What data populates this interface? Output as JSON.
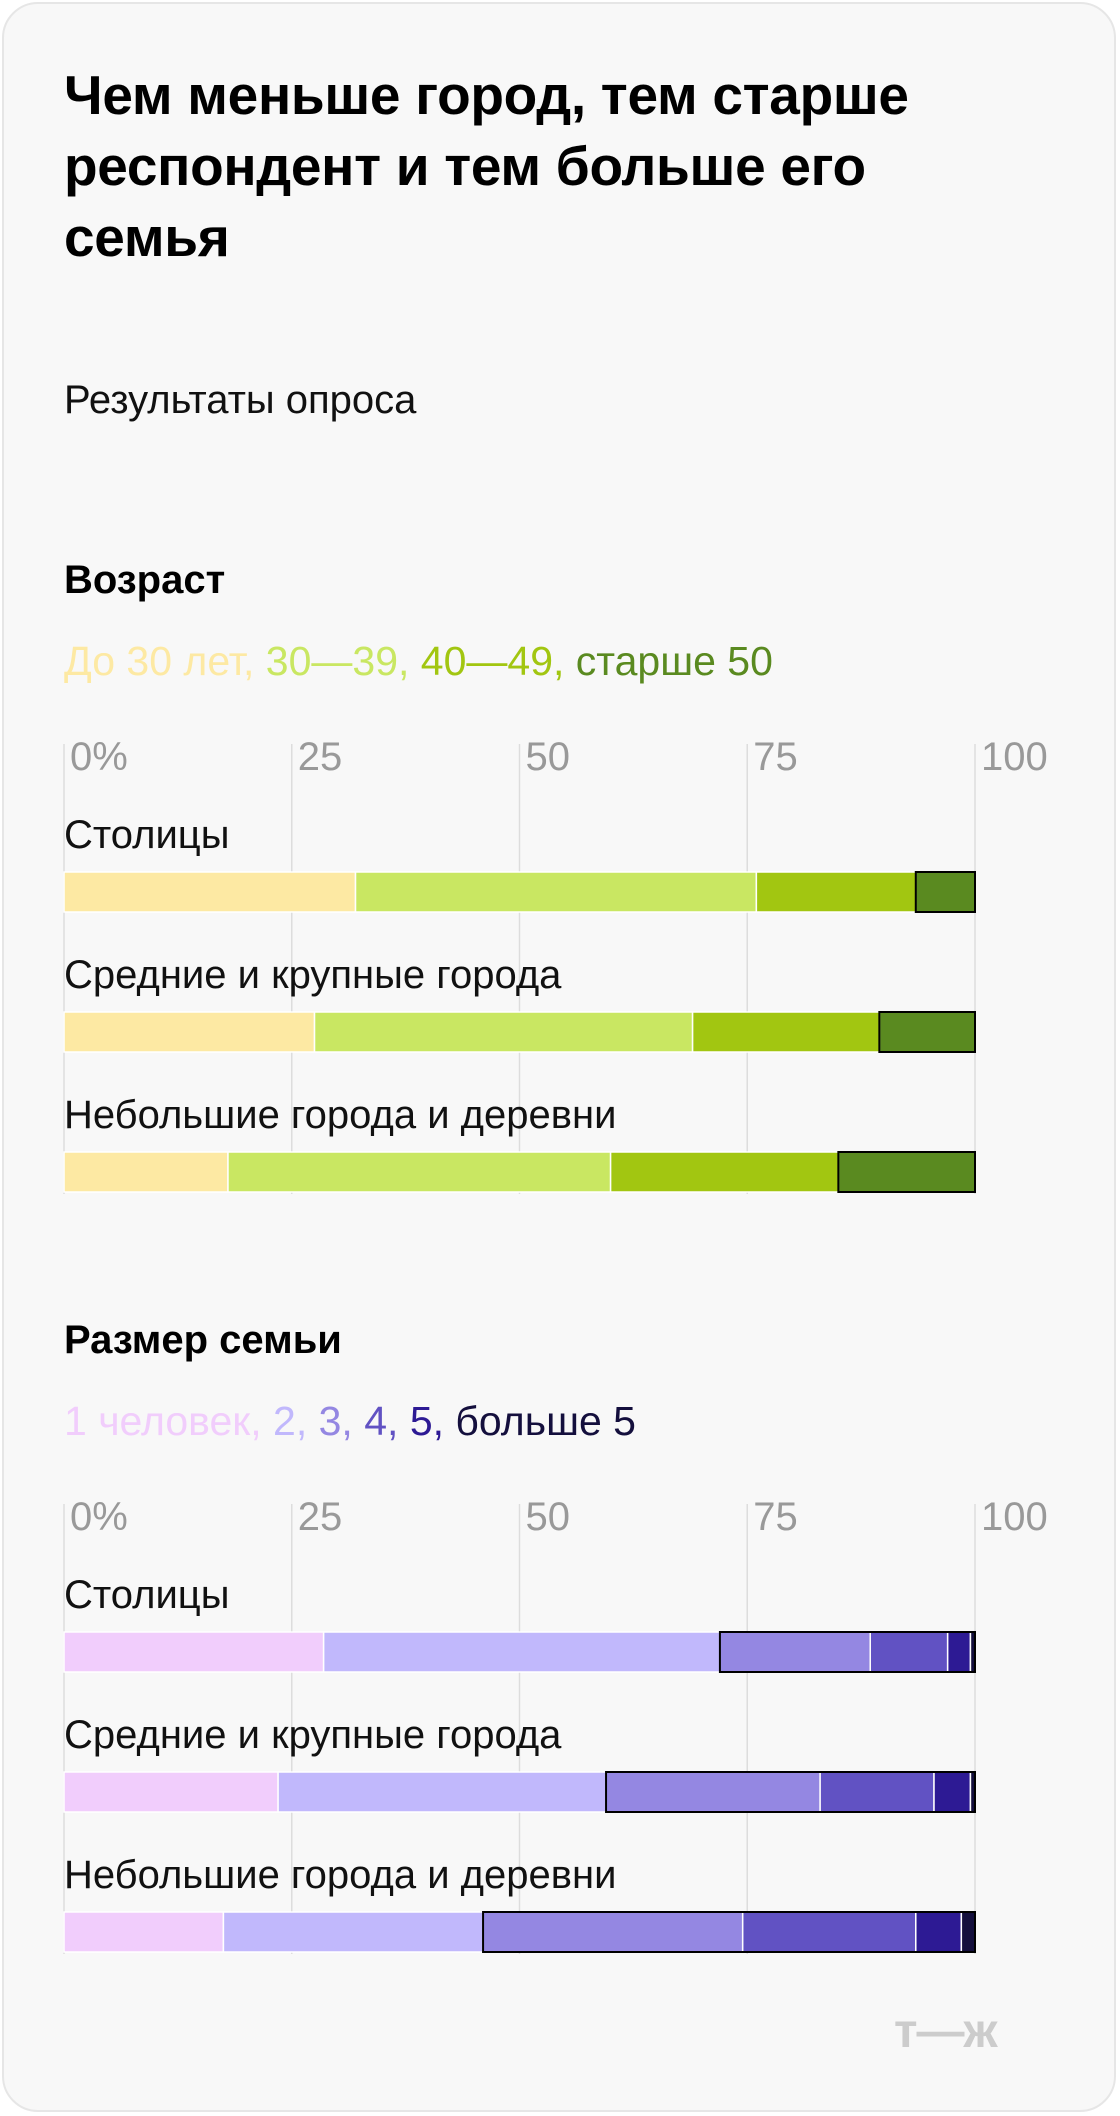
{
  "title": "Чем меньше город, тем старше респондент и тем больше его семья",
  "subtitle": "Результаты опроса",
  "logo": "т—ж",
  "chart_data": [
    {
      "type": "bar",
      "stacked": true,
      "orientation": "horizontal",
      "title": "Возраст",
      "xlim": [
        0,
        100
      ],
      "x_ticks": [
        "0%",
        "25",
        "50",
        "75",
        "100"
      ],
      "categories": [
        "Столицы",
        "Средние и крупные города",
        "Небольшие города и деревни"
      ],
      "series": [
        {
          "name": "До 30 лет",
          "color": "#fde9a3",
          "values": [
            32,
            27.5,
            18
          ]
        },
        {
          "name": "30—39",
          "color": "#c9e762",
          "values": [
            44,
            41.5,
            42
          ]
        },
        {
          "name": "40—49",
          "color": "#a2c611",
          "values": [
            17.5,
            20.5,
            25
          ]
        },
        {
          "name": "старше 50",
          "color": "#5a8a20",
          "values": [
            6.5,
            10.5,
            15
          ]
        }
      ],
      "legend_separator": ", ",
      "grid": true
    },
    {
      "type": "bar",
      "stacked": true,
      "orientation": "horizontal",
      "title": "Размер семьи",
      "xlim": [
        0,
        100
      ],
      "x_ticks": [
        "0%",
        "25",
        "50",
        "75",
        "100"
      ],
      "categories": [
        "Столицы",
        "Средние и крупные города",
        "Небольшие города и деревни"
      ],
      "series": [
        {
          "name": "1 человек",
          "color": "#f1cdfc",
          "values": [
            28.5,
            23.5,
            17.5
          ]
        },
        {
          "name": "2",
          "color": "#c1b8fc",
          "values": [
            43.5,
            36,
            28.5
          ]
        },
        {
          "name": "3",
          "color": "#9487e2",
          "values": [
            16.5,
            23.5,
            28.5
          ]
        },
        {
          "name": "4",
          "color": "#6152c3",
          "values": [
            8.5,
            12.5,
            19
          ]
        },
        {
          "name": "5",
          "color": "#2d1a94",
          "values": [
            2.5,
            4,
            5
          ]
        },
        {
          "name": "больше 5",
          "color": "#140f3d",
          "values": [
            0.5,
            0.5,
            1.5
          ]
        }
      ],
      "legend_separator": ", ",
      "grid": true
    }
  ]
}
